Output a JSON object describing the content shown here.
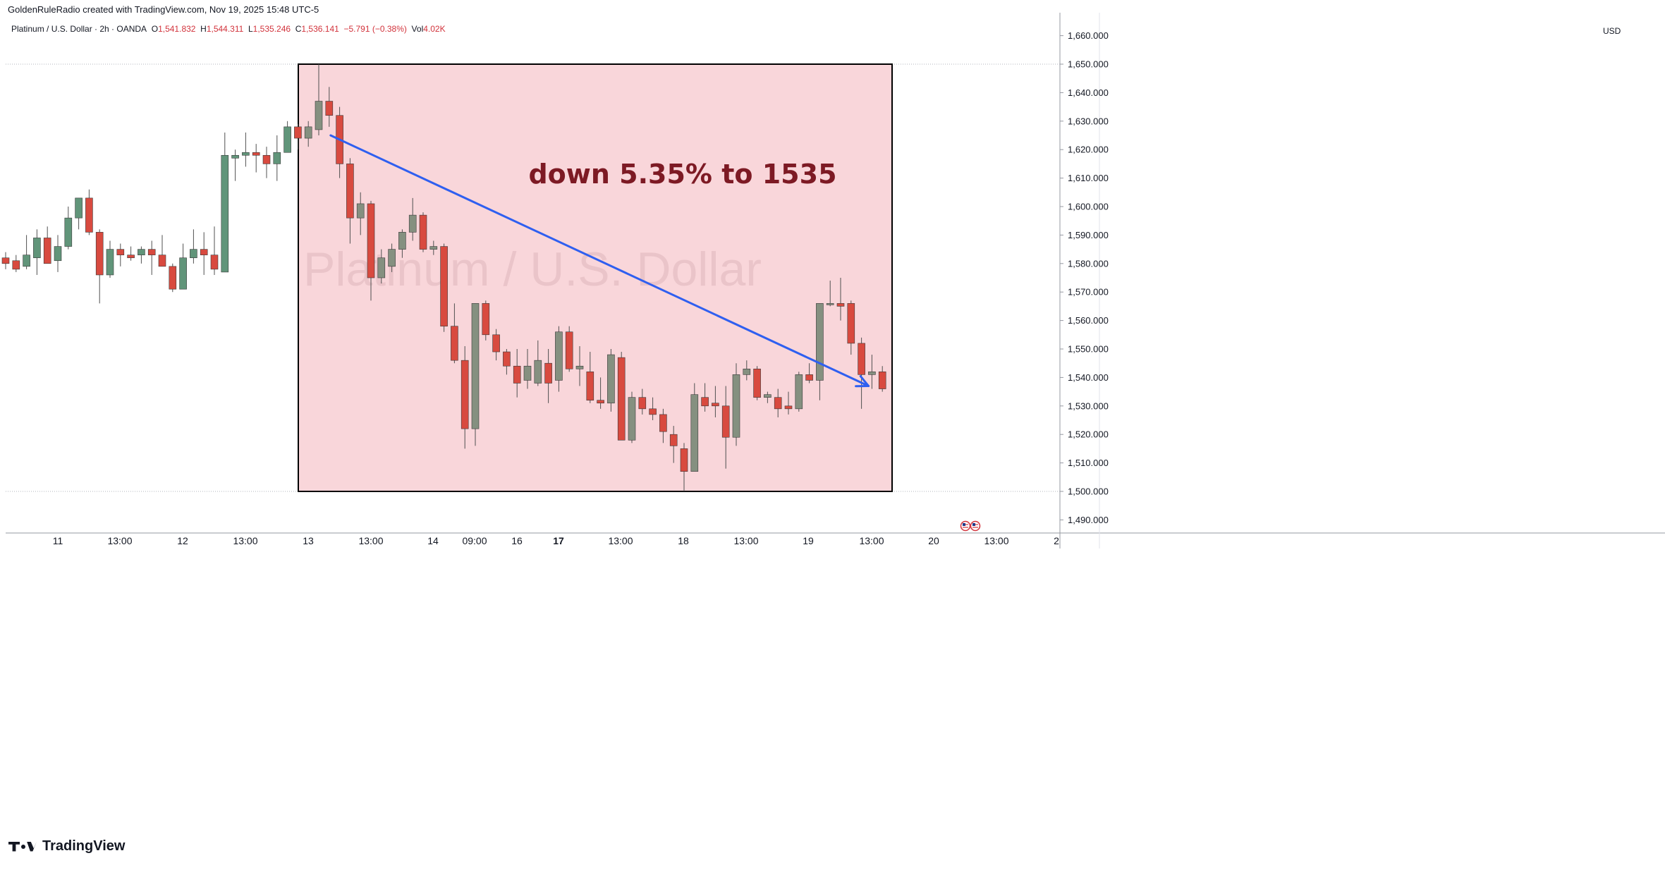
{
  "header": {
    "credit": "GoldenRuleRadio created with TradingView.com, Nov 19, 2025 15:48 UTC-5",
    "symbol": "Platinum / U.S. Dollar · 2h · OANDA",
    "o_label": "O",
    "o_value": "1,541.832",
    "h_label": "H",
    "h_value": "1,544.311",
    "l_label": "L",
    "l_value": "1,535.246",
    "c_label": "C",
    "c_value": "1,536.141",
    "change": "−5.791 (−0.38%)",
    "vol_label": "Vol",
    "vol_value": "4.02K"
  },
  "price_axis": {
    "currency": "USD",
    "labels": [
      "1,660.000",
      "1,650.000",
      "1,640.000",
      "1,630.000",
      "1,620.000",
      "1,610.000",
      "1,600.000",
      "1,590.000",
      "1,580.000",
      "1,570.000",
      "1,560.000",
      "1,550.000",
      "1,540.000",
      "1,530.000",
      "1,520.000",
      "1,510.000",
      "1,500.000",
      "1,490.000"
    ]
  },
  "time_axis": {
    "labels": [
      "11",
      "13:00",
      "12",
      "13:00",
      "13",
      "13:00",
      "14",
      "09:00",
      "16",
      "17",
      "13:00",
      "18",
      "13:00",
      "19",
      "13:00",
      "20",
      "13:00",
      "2"
    ],
    "bold": [
      "17"
    ]
  },
  "watermark": "Platinum / U.S. Dollar",
  "annotation": {
    "text": "down 5.35% to 1535",
    "color": "#7d1a24",
    "box_fill": "#f9d6da",
    "arrow_color": "#2f5ff0"
  },
  "colors": {
    "up": "#61957a",
    "up_in_box": "#859080",
    "down": "#d84a3f",
    "wick": "#505050"
  },
  "branding": "TradingView",
  "chart_data": {
    "type": "candlestick",
    "symbol": "Platinum / U.S. Dollar",
    "interval": "2h",
    "ylim": [
      1485,
      1665
    ],
    "highlight_range": {
      "price_top": 1650,
      "price_bottom": 1500
    },
    "reference_lines": [
      1650,
      1500
    ],
    "candles": [
      {
        "t": "10 18:00",
        "o": 1582,
        "h": 1584,
        "l": 1578,
        "c": 1580
      },
      {
        "t": "10 20:00",
        "o": 1581,
        "h": 1583,
        "l": 1577,
        "c": 1578
      },
      {
        "t": "10 22:00",
        "o": 1579,
        "h": 1590,
        "l": 1578,
        "c": 1583
      },
      {
        "t": "11 00:00",
        "o": 1582,
        "h": 1592,
        "l": 1576,
        "c": 1589
      },
      {
        "t": "11 02:00",
        "o": 1589,
        "h": 1593,
        "l": 1581,
        "c": 1580
      },
      {
        "t": "11 04:00",
        "o": 1581,
        "h": 1590,
        "l": 1577,
        "c": 1586
      },
      {
        "t": "11 06:00",
        "o": 1586,
        "h": 1600,
        "l": 1585,
        "c": 1596
      },
      {
        "t": "11 08:00",
        "o": 1596,
        "h": 1603,
        "l": 1592,
        "c": 1603
      },
      {
        "t": "11 10:00",
        "o": 1603,
        "h": 1606,
        "l": 1590,
        "c": 1591
      },
      {
        "t": "11 12:00",
        "o": 1591,
        "h": 1592,
        "l": 1566,
        "c": 1576
      },
      {
        "t": "11 14:00",
        "o": 1576,
        "h": 1588,
        "l": 1575,
        "c": 1585
      },
      {
        "t": "11 16:00",
        "o": 1585,
        "h": 1587,
        "l": 1579,
        "c": 1583
      },
      {
        "t": "11 18:00",
        "o": 1583,
        "h": 1586,
        "l": 1581,
        "c": 1582
      },
      {
        "t": "11 20:00",
        "o": 1583,
        "h": 1586,
        "l": 1580,
        "c": 1585
      },
      {
        "t": "11 22:00",
        "o": 1585,
        "h": 1588,
        "l": 1576,
        "c": 1583
      },
      {
        "t": "12 00:00",
        "o": 1583,
        "h": 1590,
        "l": 1579,
        "c": 1579
      },
      {
        "t": "12 02:00",
        "o": 1579,
        "h": 1580,
        "l": 1570,
        "c": 1571
      },
      {
        "t": "12 04:00",
        "o": 1571,
        "h": 1587,
        "l": 1571,
        "c": 1582
      },
      {
        "t": "12 06:00",
        "o": 1582,
        "h": 1592,
        "l": 1580,
        "c": 1585
      },
      {
        "t": "12 08:00",
        "o": 1585,
        "h": 1591,
        "l": 1576,
        "c": 1583
      },
      {
        "t": "12 10:00",
        "o": 1583,
        "h": 1593,
        "l": 1576,
        "c": 1578
      },
      {
        "t": "12 12:00",
        "o": 1577,
        "h": 1626,
        "l": 1577,
        "c": 1618
      },
      {
        "t": "12 14:00",
        "o": 1617,
        "h": 1620,
        "l": 1609,
        "c": 1618
      },
      {
        "t": "12 16:00",
        "o": 1618,
        "h": 1626,
        "l": 1614,
        "c": 1619
      },
      {
        "t": "12 18:00",
        "o": 1619,
        "h": 1622,
        "l": 1612,
        "c": 1618
      },
      {
        "t": "12 20:00",
        "o": 1618,
        "h": 1621,
        "l": 1610,
        "c": 1615
      },
      {
        "t": "12 22:00",
        "o": 1615,
        "h": 1625,
        "l": 1609,
        "c": 1619
      },
      {
        "t": "13 00:00",
        "o": 1619,
        "h": 1630,
        "l": 1619,
        "c": 1628
      },
      {
        "t": "13 02:00",
        "o": 1628,
        "h": 1629,
        "l": 1620,
        "c": 1624
      },
      {
        "t": "13 04:00",
        "o": 1624,
        "h": 1630,
        "l": 1621,
        "c": 1628
      },
      {
        "t": "13 06:00",
        "o": 1627,
        "h": 1650,
        "l": 1625,
        "c": 1637
      },
      {
        "t": "13 08:00",
        "o": 1637,
        "h": 1642,
        "l": 1628,
        "c": 1632
      },
      {
        "t": "13 10:00",
        "o": 1632,
        "h": 1635,
        "l": 1610,
        "c": 1615
      },
      {
        "t": "13 12:00",
        "o": 1615,
        "h": 1617,
        "l": 1587,
        "c": 1596
      },
      {
        "t": "13 14:00",
        "o": 1596,
        "h": 1605,
        "l": 1590,
        "c": 1601
      },
      {
        "t": "13 16:00",
        "o": 1601,
        "h": 1602,
        "l": 1567,
        "c": 1575
      },
      {
        "t": "13 18:00",
        "o": 1575,
        "h": 1585,
        "l": 1573,
        "c": 1582
      },
      {
        "t": "13 20:00",
        "o": 1579,
        "h": 1587,
        "l": 1577,
        "c": 1585
      },
      {
        "t": "13 22:00",
        "o": 1585,
        "h": 1592,
        "l": 1582,
        "c": 1591
      },
      {
        "t": "14 00:00",
        "o": 1591,
        "h": 1603,
        "l": 1588,
        "c": 1597
      },
      {
        "t": "14 02:00",
        "o": 1597,
        "h": 1598,
        "l": 1584,
        "c": 1585
      },
      {
        "t": "14 04:00",
        "o": 1585,
        "h": 1588,
        "l": 1583,
        "c": 1586
      },
      {
        "t": "14 06:00",
        "o": 1586,
        "h": 1587,
        "l": 1556,
        "c": 1558
      },
      {
        "t": "14 08:00",
        "o": 1558,
        "h": 1566,
        "l": 1545,
        "c": 1546
      },
      {
        "t": "14 10:00",
        "o": 1546,
        "h": 1551,
        "l": 1515,
        "c": 1522
      },
      {
        "t": "14 12:00",
        "o": 1522,
        "h": 1566,
        "l": 1516,
        "c": 1566
      },
      {
        "t": "14 14:00",
        "o": 1566,
        "h": 1567,
        "l": 1553,
        "c": 1555
      },
      {
        "t": "16 18:00",
        "o": 1555,
        "h": 1557,
        "l": 1546,
        "c": 1549
      },
      {
        "t": "16 20:00",
        "o": 1549,
        "h": 1550,
        "l": 1541,
        "c": 1544
      },
      {
        "t": "16 22:00",
        "o": 1544,
        "h": 1550,
        "l": 1533,
        "c": 1538
      },
      {
        "t": "17 00:00",
        "o": 1539,
        "h": 1550,
        "l": 1536,
        "c": 1544
      },
      {
        "t": "17 02:00",
        "o": 1538,
        "h": 1553,
        "l": 1537,
        "c": 1546
      },
      {
        "t": "17 04:00",
        "o": 1545,
        "h": 1550,
        "l": 1531,
        "c": 1538
      },
      {
        "t": "17 06:00",
        "o": 1539,
        "h": 1558,
        "l": 1535,
        "c": 1556
      },
      {
        "t": "17 08:00",
        "o": 1556,
        "h": 1558,
        "l": 1542,
        "c": 1543
      },
      {
        "t": "17 10:00",
        "o": 1543,
        "h": 1551,
        "l": 1537,
        "c": 1544
      },
      {
        "t": "17 12:00",
        "o": 1542,
        "h": 1549,
        "l": 1531,
        "c": 1532
      },
      {
        "t": "17 14:00",
        "o": 1532,
        "h": 1540,
        "l": 1529,
        "c": 1531
      },
      {
        "t": "17 16:00",
        "o": 1531,
        "h": 1550,
        "l": 1528,
        "c": 1548
      },
      {
        "t": "17 18:00",
        "o": 1547,
        "h": 1549,
        "l": 1518,
        "c": 1518
      },
      {
        "t": "17 20:00",
        "o": 1518,
        "h": 1535,
        "l": 1517,
        "c": 1533
      },
      {
        "t": "17 22:00",
        "o": 1533,
        "h": 1536,
        "l": 1527,
        "c": 1529
      },
      {
        "t": "18 00:00",
        "o": 1529,
        "h": 1533,
        "l": 1525,
        "c": 1527
      },
      {
        "t": "18 02:00",
        "o": 1527,
        "h": 1529,
        "l": 1517,
        "c": 1521
      },
      {
        "t": "18 04:00",
        "o": 1520,
        "h": 1523,
        "l": 1510,
        "c": 1516
      },
      {
        "t": "18 06:00",
        "o": 1515,
        "h": 1517,
        "l": 1500,
        "c": 1507
      },
      {
        "t": "18 08:00",
        "o": 1507,
        "h": 1538,
        "l": 1507,
        "c": 1534
      },
      {
        "t": "18 10:00",
        "o": 1533,
        "h": 1538,
        "l": 1528,
        "c": 1530
      },
      {
        "t": "18 12:00",
        "o": 1531,
        "h": 1537,
        "l": 1526,
        "c": 1530
      },
      {
        "t": "18 14:00",
        "o": 1530,
        "h": 1537,
        "l": 1508,
        "c": 1519
      },
      {
        "t": "18 16:00",
        "o": 1519,
        "h": 1545,
        "l": 1516,
        "c": 1541
      },
      {
        "t": "18 18:00",
        "o": 1541,
        "h": 1546,
        "l": 1539,
        "c": 1543
      },
      {
        "t": "18 20:00",
        "o": 1543,
        "h": 1544,
        "l": 1532,
        "c": 1533
      },
      {
        "t": "18 22:00",
        "o": 1533,
        "h": 1535,
        "l": 1531,
        "c": 1534
      },
      {
        "t": "19 00:00",
        "o": 1533,
        "h": 1536,
        "l": 1526,
        "c": 1529
      },
      {
        "t": "19 02:00",
        "o": 1530,
        "h": 1535,
        "l": 1527,
        "c": 1529
      },
      {
        "t": "19 04:00",
        "o": 1529,
        "h": 1542,
        "l": 1528,
        "c": 1541
      },
      {
        "t": "19 06:00",
        "o": 1541,
        "h": 1545,
        "l": 1538,
        "c": 1539
      },
      {
        "t": "19 08:00",
        "o": 1539,
        "h": 1566,
        "l": 1532,
        "c": 1566
      },
      {
        "t": "19 10:00",
        "o": 1566,
        "h": 1574,
        "l": 1565,
        "c": 1566
      },
      {
        "t": "19 12:00",
        "o": 1566,
        "h": 1575,
        "l": 1560,
        "c": 1565
      },
      {
        "t": "19 14:00",
        "o": 1566,
        "h": 1567,
        "l": 1548,
        "c": 1552
      },
      {
        "t": "19 16:00",
        "o": 1552,
        "h": 1554,
        "l": 1529,
        "c": 1541
      },
      {
        "t": "19 18:00",
        "o": 1541,
        "h": 1548,
        "l": 1536,
        "c": 1542
      },
      {
        "t": "19 20:00",
        "o": 1542,
        "h": 1544,
        "l": 1535,
        "c": 1536
      }
    ],
    "trend_arrow": {
      "from": {
        "t": "13 08:00",
        "price": 1625
      },
      "to": {
        "t": "19 16:00",
        "price": 1537
      }
    },
    "title": "Platinum / U.S. Dollar"
  }
}
